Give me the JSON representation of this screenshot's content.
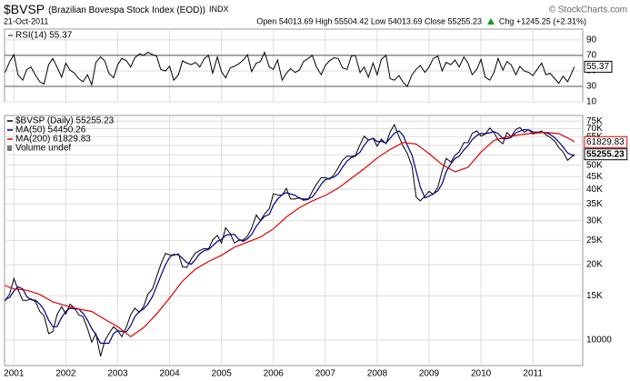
{
  "header": {
    "symbol": "$BVSP",
    "name": "(Brazilian Bovespa Stock Index (EOD))",
    "exchange": "INDX",
    "date": "21-Oct-2011",
    "quote": "Open 54013.69 High 55504.42 Low 54013.69 Close 55255.23",
    "change": "Chg +1245.25 (+2.31%)",
    "source": "© StockCharts.com"
  },
  "chart_data": [
    {
      "type": "line",
      "title": "RSI(14) 55.37",
      "thresholds": [
        70,
        30
      ],
      "xlim": [
        2000.82,
        2011.96
      ],
      "xticks": [
        2001,
        2002,
        2003,
        2004,
        2005,
        2006,
        2007,
        2008,
        2009,
        2010,
        2011
      ],
      "ylim": [
        10,
        104
      ],
      "yticks": [
        90,
        70,
        50,
        30,
        10
      ],
      "grid": true,
      "x": [
        2000.83,
        2000.92,
        2001.0,
        2001.08,
        2001.17,
        2001.25,
        2001.33,
        2001.42,
        2001.5,
        2001.58,
        2001.67,
        2001.75,
        2001.83,
        2001.92,
        2002.0,
        2002.08,
        2002.17,
        2002.25,
        2002.33,
        2002.42,
        2002.5,
        2002.58,
        2002.67,
        2002.75,
        2002.83,
        2002.92,
        2003.0,
        2003.08,
        2003.17,
        2003.25,
        2003.33,
        2003.42,
        2003.5,
        2003.58,
        2003.67,
        2003.75,
        2003.83,
        2003.92,
        2004.0,
        2004.08,
        2004.17,
        2004.25,
        2004.33,
        2004.42,
        2004.5,
        2004.58,
        2004.67,
        2004.75,
        2004.83,
        2004.92,
        2005.0,
        2005.08,
        2005.17,
        2005.25,
        2005.33,
        2005.42,
        2005.5,
        2005.58,
        2005.67,
        2005.75,
        2005.83,
        2005.92,
        2006.0,
        2006.08,
        2006.17,
        2006.25,
        2006.33,
        2006.42,
        2006.5,
        2006.58,
        2006.67,
        2006.75,
        2006.83,
        2006.92,
        2007.0,
        2007.08,
        2007.17,
        2007.25,
        2007.33,
        2007.42,
        2007.5,
        2007.58,
        2007.67,
        2007.75,
        2007.83,
        2007.92,
        2008.0,
        2008.08,
        2008.17,
        2008.25,
        2008.33,
        2008.42,
        2008.5,
        2008.58,
        2008.67,
        2008.75,
        2008.83,
        2008.92,
        2009.0,
        2009.08,
        2009.17,
        2009.25,
        2009.33,
        2009.42,
        2009.5,
        2009.58,
        2009.67,
        2009.75,
        2009.83,
        2009.92,
        2010.0,
        2010.08,
        2010.17,
        2010.25,
        2010.33,
        2010.42,
        2010.5,
        2010.58,
        2010.67,
        2010.75,
        2010.83,
        2010.92,
        2011.0,
        2011.08,
        2011.17,
        2011.25,
        2011.33,
        2011.42,
        2011.5,
        2011.58,
        2011.67,
        2011.8
      ],
      "series": [
        {
          "name": "RSI(14)",
          "color": "#000000",
          "values": [
            48,
            62,
            71,
            45,
            38,
            52,
            55,
            44,
            36,
            33,
            58,
            66,
            55,
            42,
            60,
            51,
            47,
            40,
            36,
            45,
            32,
            61,
            68,
            63,
            47,
            41,
            58,
            66,
            63,
            55,
            67,
            72,
            70,
            74,
            71,
            69,
            52,
            50,
            56,
            38,
            45,
            63,
            60,
            58,
            61,
            55,
            66,
            70,
            47,
            68,
            49,
            41,
            54,
            56,
            59,
            64,
            71,
            49,
            60,
            62,
            74,
            55,
            52,
            64,
            38,
            47,
            53,
            48,
            51,
            62,
            66,
            70,
            55,
            45,
            57,
            63,
            67,
            66,
            54,
            52,
            69,
            70,
            48,
            55,
            42,
            60,
            45,
            65,
            70,
            40,
            38,
            44,
            35,
            30,
            45,
            52,
            57,
            48,
            55,
            66,
            69,
            50,
            61,
            58,
            64,
            55,
            68,
            60,
            45,
            52,
            65,
            42,
            38,
            48,
            66,
            51,
            62,
            58,
            45,
            56,
            50,
            48,
            44,
            52,
            60,
            45,
            47,
            40,
            34,
            43,
            36,
            55.37
          ]
        }
      ]
    },
    {
      "type": "line",
      "log_scale": true,
      "legend": "top-left",
      "annotations": [
        "Volume undef"
      ],
      "xlim": [
        2000.82,
        2011.96
      ],
      "xticks": [
        2001,
        2002,
        2003,
        2004,
        2005,
        2006,
        2007,
        2008,
        2009,
        2010,
        2011
      ],
      "ylim": [
        7900,
        79000
      ],
      "grid": true,
      "yticks": [
        {
          "value": 75000,
          "label": "75K"
        },
        {
          "value": 70000,
          "label": "70K"
        },
        {
          "value": 65000,
          "label": "65K"
        },
        {
          "value": 60000,
          "label": "60K"
        },
        {
          "value": 55000,
          "label": "55K"
        },
        {
          "value": 50000,
          "label": "50K"
        },
        {
          "value": 45000,
          "label": "45K"
        },
        {
          "value": 40000,
          "label": "40K"
        },
        {
          "value": 35000,
          "label": "35K"
        },
        {
          "value": 30000,
          "label": "30K"
        },
        {
          "value": 25000,
          "label": "25K"
        },
        {
          "value": 20000,
          "label": "20K"
        },
        {
          "value": 15000,
          "label": "15K"
        },
        10000
      ],
      "x": [
        2000.83,
        2000.92,
        2001.0,
        2001.08,
        2001.17,
        2001.25,
        2001.33,
        2001.42,
        2001.5,
        2001.58,
        2001.67,
        2001.75,
        2001.83,
        2001.92,
        2002.0,
        2002.08,
        2002.17,
        2002.25,
        2002.33,
        2002.42,
        2002.5,
        2002.58,
        2002.67,
        2002.75,
        2002.83,
        2002.92,
        2003.0,
        2003.08,
        2003.17,
        2003.25,
        2003.33,
        2003.42,
        2003.5,
        2003.58,
        2003.67,
        2003.75,
        2003.83,
        2003.92,
        2004.0,
        2004.08,
        2004.17,
        2004.25,
        2004.33,
        2004.42,
        2004.5,
        2004.58,
        2004.67,
        2004.75,
        2004.83,
        2004.92,
        2005.0,
        2005.08,
        2005.17,
        2005.25,
        2005.33,
        2005.42,
        2005.5,
        2005.58,
        2005.67,
        2005.75,
        2005.83,
        2005.92,
        2006.0,
        2006.08,
        2006.17,
        2006.25,
        2006.33,
        2006.42,
        2006.5,
        2006.58,
        2006.67,
        2006.75,
        2006.83,
        2006.92,
        2007.0,
        2007.08,
        2007.17,
        2007.25,
        2007.33,
        2007.42,
        2007.5,
        2007.58,
        2007.67,
        2007.75,
        2007.83,
        2007.92,
        2008.0,
        2008.08,
        2008.17,
        2008.25,
        2008.33,
        2008.42,
        2008.5,
        2008.58,
        2008.67,
        2008.75,
        2008.83,
        2008.92,
        2009.0,
        2009.08,
        2009.17,
        2009.25,
        2009.33,
        2009.42,
        2009.5,
        2009.58,
        2009.67,
        2009.75,
        2009.83,
        2009.92,
        2010.0,
        2010.08,
        2010.17,
        2010.25,
        2010.33,
        2010.42,
        2010.5,
        2010.58,
        2010.67,
        2010.75,
        2010.83,
        2010.92,
        2011.0,
        2011.08,
        2011.17,
        2011.25,
        2011.33,
        2011.42,
        2011.5,
        2011.58,
        2011.67,
        2011.8
      ],
      "series": [
        {
          "name": "$BVSP (Daily) 55255.23",
          "color": "#000000",
          "values": [
            14300,
            15300,
            17600,
            15900,
            14400,
            14400,
            14600,
            14200,
            13000,
            12500,
            10600,
            10800,
            12600,
            13600,
            12700,
            13900,
            13400,
            12600,
            12400,
            11100,
            9800,
            10600,
            8600,
            9900,
            10600,
            11300,
            10900,
            10300,
            11300,
            12600,
            13400,
            12900,
            13600,
            15200,
            16000,
            17900,
            20000,
            22200,
            21900,
            21800,
            22100,
            19600,
            19500,
            21100,
            22300,
            22800,
            23200,
            23100,
            25100,
            26200,
            24400,
            28100,
            26600,
            24400,
            25000,
            25100,
            26000,
            28000,
            31600,
            30000,
            31900,
            33500,
            38400,
            38000,
            37900,
            40400,
            36600,
            36600,
            37100,
            36200,
            36400,
            39300,
            41900,
            44500,
            44600,
            43900,
            45800,
            48900,
            52300,
            54400,
            54200,
            54600,
            60500,
            65300,
            63000,
            63900,
            59500,
            63500,
            60900,
            67900,
            72600,
            65000,
            59500,
            55700,
            49500,
            37300,
            36000,
            37600,
            39300,
            38200,
            40900,
            47300,
            53200,
            51500,
            54800,
            56500,
            61500,
            61500,
            67000,
            68600,
            65400,
            66500,
            70400,
            67500,
            63000,
            60900,
            67500,
            65100,
            69400,
            70700,
            67700,
            69300,
            66600,
            67400,
            68600,
            66100,
            64600,
            62400,
            58800,
            56500,
            52300,
            55255.23
          ]
        },
        {
          "name": "MA(50) 54450.26",
          "color": "#00008b",
          "values": [
            14500,
            14800,
            15700,
            16300,
            16000,
            14900,
            14500,
            14400,
            13900,
            13200,
            12000,
            11300,
            11300,
            12300,
            13000,
            13400,
            13300,
            13300,
            12800,
            12000,
            11100,
            10500,
            9700,
            9700,
            9700,
            10600,
            10900,
            10800,
            10800,
            11400,
            12400,
            13000,
            13300,
            13900,
            14900,
            16400,
            18000,
            20000,
            21400,
            22000,
            21900,
            21200,
            20400,
            20100,
            21000,
            22100,
            22800,
            23000,
            23800,
            24800,
            25200,
            26200,
            26400,
            26400,
            25300,
            24800,
            25400,
            26400,
            28500,
            29900,
            31200,
            31800,
            34600,
            36600,
            38100,
            38800,
            38300,
            37900,
            36800,
            36600,
            36600,
            37300,
            39200,
            41900,
            43700,
            44300,
            44800,
            46200,
            49000,
            51900,
            53600,
            54400,
            56400,
            60100,
            62900,
            64100,
            62100,
            62300,
            61300,
            64100,
            67100,
            68500,
            65700,
            60100,
            54900,
            47500,
            40900,
            37000,
            37600,
            38400,
            39500,
            42100,
            47100,
            50700,
            53200,
            54300,
            57600,
            59800,
            63300,
            65700,
            67000,
            66800,
            67400,
            68100,
            67000,
            63800,
            63800,
            64500,
            67300,
            68400,
            69300,
            69200,
            67900,
            67800,
            67500,
            67400,
            66400,
            64400,
            61900,
            59200,
            55900,
            54450.26
          ]
        },
        {
          "name": "MA(200) 61829.83",
          "color": "#e00000",
          "x": [
            2000.83,
            2001.0,
            2001.25,
            2001.5,
            2001.75,
            2002.0,
            2002.25,
            2002.5,
            2002.75,
            2003.0,
            2003.25,
            2003.5,
            2003.75,
            2004.0,
            2004.25,
            2004.5,
            2004.75,
            2005.0,
            2005.25,
            2005.5,
            2005.75,
            2006.0,
            2006.25,
            2006.5,
            2006.75,
            2007.0,
            2007.25,
            2007.5,
            2007.75,
            2008.0,
            2008.25,
            2008.5,
            2008.75,
            2009.0,
            2009.25,
            2009.5,
            2009.75,
            2010.0,
            2010.25,
            2010.5,
            2010.75,
            2011.0,
            2011.25,
            2011.5,
            2011.75,
            2011.8
          ],
          "values": [
            16500,
            16000,
            15800,
            15200,
            14200,
            13700,
            13300,
            13000,
            12100,
            11300,
            10300,
            11200,
            12700,
            14700,
            17200,
            19200,
            20600,
            21800,
            23500,
            24600,
            25800,
            27800,
            31000,
            33800,
            36000,
            37800,
            40500,
            44300,
            48400,
            53400,
            57800,
            61600,
            60800,
            55600,
            50300,
            47000,
            49000,
            56400,
            62800,
            64900,
            66200,
            67100,
            67600,
            66800,
            63000,
            61829.83
          ]
        }
      ]
    }
  ]
}
